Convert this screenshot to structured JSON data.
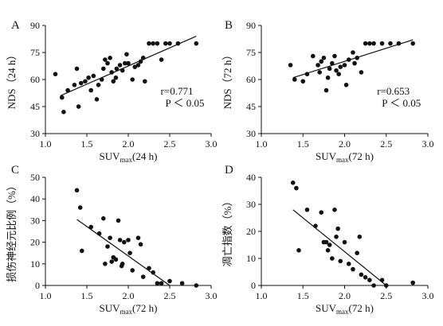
{
  "chart_data": [
    {
      "type": "scatter",
      "panel": "A",
      "xlabel": "SUV",
      "xlabel_sub": "max",
      "xlabel_suffix": "(24 h)",
      "ylabel": "NDS（24 h）",
      "xlim": [
        1.0,
        3.0
      ],
      "ylim": [
        30,
        90
      ],
      "xticks": [
        "1.0",
        "1.5",
        "2.0",
        "2.5",
        "3.0"
      ],
      "yticks": [
        "30",
        "45",
        "60",
        "75",
        "90"
      ],
      "annotation_r": "r=0.771",
      "annotation_p": "P ＜ 0.05",
      "fit": [
        [
          1.18,
          51
        ],
        [
          2.82,
          84
        ]
      ],
      "points": [
        [
          1.12,
          63
        ],
        [
          1.2,
          50
        ],
        [
          1.22,
          42
        ],
        [
          1.27,
          54
        ],
        [
          1.35,
          57
        ],
        [
          1.38,
          66
        ],
        [
          1.4,
          45
        ],
        [
          1.43,
          58
        ],
        [
          1.48,
          59
        ],
        [
          1.52,
          61
        ],
        [
          1.55,
          54
        ],
        [
          1.58,
          62
        ],
        [
          1.62,
          49
        ],
        [
          1.64,
          57
        ],
        [
          1.68,
          60
        ],
        [
          1.7,
          66
        ],
        [
          1.72,
          71
        ],
        [
          1.75,
          69
        ],
        [
          1.78,
          72
        ],
        [
          1.8,
          64
        ],
        [
          1.82,
          59
        ],
        [
          1.85,
          61
        ],
        [
          1.86,
          66
        ],
        [
          1.9,
          68
        ],
        [
          1.93,
          65
        ],
        [
          1.96,
          69
        ],
        [
          1.98,
          74
        ],
        [
          2.0,
          69
        ],
        [
          2.05,
          60
        ],
        [
          2.08,
          67
        ],
        [
          2.12,
          68
        ],
        [
          2.15,
          70
        ],
        [
          2.18,
          72
        ],
        [
          2.2,
          59
        ],
        [
          2.25,
          80
        ],
        [
          2.3,
          80
        ],
        [
          2.35,
          80
        ],
        [
          2.4,
          71
        ],
        [
          2.45,
          80
        ],
        [
          2.5,
          80
        ],
        [
          2.6,
          80
        ],
        [
          2.82,
          80
        ]
      ]
    },
    {
      "type": "scatter",
      "panel": "B",
      "xlabel": "SUV",
      "xlabel_sub": "max",
      "xlabel_suffix": "(72 h)",
      "ylabel": "NDS（72 h）",
      "xlim": [
        1.0,
        3.0
      ],
      "ylim": [
        30,
        90
      ],
      "xticks": [
        "1.0",
        "1.5",
        "2.0",
        "2.5",
        "3.0"
      ],
      "yticks": [
        "30",
        "45",
        "60",
        "75",
        "90"
      ],
      "annotation_r": "r=0.653",
      "annotation_p": "P ＜ 0.05",
      "fit": [
        [
          1.38,
          61
        ],
        [
          2.82,
          82
        ]
      ],
      "points": [
        [
          1.35,
          68
        ],
        [
          1.4,
          60
        ],
        [
          1.5,
          59
        ],
        [
          1.55,
          63
        ],
        [
          1.62,
          73
        ],
        [
          1.68,
          68
        ],
        [
          1.7,
          64
        ],
        [
          1.72,
          70
        ],
        [
          1.75,
          72
        ],
        [
          1.78,
          54
        ],
        [
          1.8,
          61
        ],
        [
          1.82,
          66
        ],
        [
          1.85,
          69
        ],
        [
          1.88,
          73
        ],
        [
          1.9,
          65
        ],
        [
          1.93,
          63
        ],
        [
          1.95,
          67
        ],
        [
          2.0,
          68
        ],
        [
          2.02,
          57
        ],
        [
          2.05,
          71
        ],
        [
          2.1,
          75
        ],
        [
          2.12,
          69
        ],
        [
          2.15,
          72
        ],
        [
          2.2,
          64
        ],
        [
          2.25,
          80
        ],
        [
          2.3,
          80
        ],
        [
          2.35,
          80
        ],
        [
          2.45,
          80
        ],
        [
          2.55,
          80
        ],
        [
          2.65,
          80
        ],
        [
          2.82,
          80
        ]
      ]
    },
    {
      "type": "scatter",
      "panel": "C",
      "xlabel": "SUV",
      "xlabel_sub": "max",
      "xlabel_suffix": "(72 h)",
      "ylabel": "损伤神经元比例（%）",
      "xlim": [
        1.0,
        3.0
      ],
      "ylim": [
        0,
        50
      ],
      "xticks": [
        "1.0",
        "1.5",
        "2.0",
        "2.5",
        "3.0"
      ],
      "yticks": [
        "0",
        "10",
        "20",
        "30",
        "40",
        "50"
      ],
      "fit": [
        [
          1.38,
          30.5
        ],
        [
          2.5,
          0
        ]
      ],
      "points": [
        [
          1.38,
          44
        ],
        [
          1.42,
          36
        ],
        [
          1.44,
          16
        ],
        [
          1.55,
          27
        ],
        [
          1.65,
          24
        ],
        [
          1.7,
          31
        ],
        [
          1.72,
          10
        ],
        [
          1.75,
          18
        ],
        [
          1.78,
          22
        ],
        [
          1.8,
          11
        ],
        [
          1.82,
          13
        ],
        [
          1.85,
          12
        ],
        [
          1.88,
          30
        ],
        [
          1.9,
          21
        ],
        [
          1.92,
          9
        ],
        [
          1.93,
          10
        ],
        [
          1.95,
          20
        ],
        [
          2.0,
          21
        ],
        [
          2.02,
          15
        ],
        [
          2.05,
          7
        ],
        [
          2.12,
          22
        ],
        [
          2.15,
          19
        ],
        [
          2.18,
          4
        ],
        [
          2.25,
          8
        ],
        [
          2.3,
          6
        ],
        [
          2.35,
          1
        ],
        [
          2.4,
          1
        ],
        [
          2.5,
          2
        ],
        [
          2.65,
          1
        ],
        [
          2.82,
          0
        ]
      ]
    },
    {
      "type": "scatter",
      "panel": "D",
      "xlabel": "SUV",
      "xlabel_sub": "max",
      "xlabel_suffix": "(72 h)",
      "ylabel": "凋亡指数（%）",
      "xlim": [
        1.0,
        3.0
      ],
      "ylim": [
        0,
        40
      ],
      "xticks": [
        "1.0",
        "1.5",
        "2.0",
        "2.5",
        "3.0"
      ],
      "yticks": [
        "0",
        "10",
        "20",
        "30",
        "40"
      ],
      "fit": [
        [
          1.38,
          28
        ],
        [
          2.5,
          0
        ]
      ],
      "points": [
        [
          1.38,
          38
        ],
        [
          1.42,
          36
        ],
        [
          1.45,
          13
        ],
        [
          1.55,
          28
        ],
        [
          1.65,
          22
        ],
        [
          1.72,
          27
        ],
        [
          1.75,
          16
        ],
        [
          1.78,
          16
        ],
        [
          1.8,
          13
        ],
        [
          1.82,
          15
        ],
        [
          1.85,
          10
        ],
        [
          1.88,
          28
        ],
        [
          1.9,
          18
        ],
        [
          1.92,
          21
        ],
        [
          1.95,
          9
        ],
        [
          2.0,
          16
        ],
        [
          2.05,
          8
        ],
        [
          2.1,
          6
        ],
        [
          2.15,
          12
        ],
        [
          2.18,
          18
        ],
        [
          2.2,
          4
        ],
        [
          2.25,
          3
        ],
        [
          2.3,
          2
        ],
        [
          2.35,
          0
        ],
        [
          2.45,
          2
        ],
        [
          2.5,
          0
        ],
        [
          2.82,
          1
        ]
      ]
    }
  ]
}
